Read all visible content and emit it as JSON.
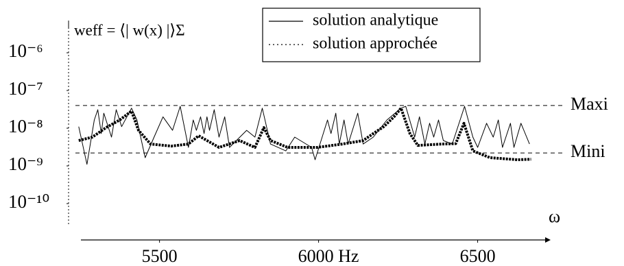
{
  "chart_data": {
    "type": "line",
    "ylabel": "weff = ⟨| w(x) |⟩Σ",
    "xlabel": "ω",
    "log_y": true,
    "xlim": [
      5240,
      6710
    ],
    "ylim": [
      1e-11,
      1e-05
    ],
    "xticks": [
      5500,
      {
        "value": 6000,
        "label": "6000 Hz"
      },
      6500
    ],
    "yticks": [
      {
        "value": 1e-06,
        "label": "10⁻⁶"
      },
      {
        "value": 1e-07,
        "label": "10⁻⁷"
      },
      {
        "value": 1e-08,
        "label": "10⁻⁸"
      },
      {
        "value": 1e-09,
        "label": "10⁻⁹"
      },
      {
        "value": 1e-10,
        "label": "10⁻¹⁰"
      }
    ],
    "reference_lines": [
      {
        "label": "Maxi",
        "value": 4e-08
      },
      {
        "label": "Mini",
        "value": 2.2e-09
      }
    ],
    "legend": "top",
    "series": [
      {
        "name": "solution analytique",
        "color": "#000000",
        "style": "solid",
        "x": [
          5246,
          5272,
          5295,
          5306,
          5317,
          5325,
          5349,
          5364,
          5381,
          5412,
          5429,
          5455,
          5483,
          5511,
          5541,
          5565,
          5591,
          5606,
          5616,
          5629,
          5640,
          5649,
          5657,
          5672,
          5687,
          5705,
          5720,
          5774,
          5800,
          5823,
          5849,
          5897,
          5925,
          5978,
          5989,
          6028,
          6039,
          6054,
          6065,
          6080,
          6093,
          6123,
          6140,
          6172,
          6215,
          6259,
          6274,
          6302,
          6317,
          6334,
          6349,
          6362,
          6377,
          6392,
          6420,
          6459,
          6485,
          6500,
          6528,
          6549,
          6565,
          6578,
          6603,
          6614,
          6636,
          6663
        ],
        "values": [
          1.1e-08,
          1.1e-09,
          1.65e-08,
          3.1e-08,
          7.2e-09,
          2.5e-08,
          5.8e-09,
          3.1e-08,
          1.1e-08,
          3.4e-08,
          1.65e-08,
          1.65e-09,
          5.8e-09,
          2e-08,
          8.8e-09,
          3.8e-08,
          3.1e-09,
          1.65e-08,
          8.8e-09,
          2e-08,
          7.2e-09,
          2e-08,
          8.8e-09,
          3.1e-08,
          5.8e-09,
          2e-08,
          3.1e-09,
          8.8e-09,
          5.8e-09,
          3.4e-08,
          3.8e-09,
          2.5e-09,
          5.8e-09,
          3.1e-09,
          1.46e-09,
          1.65e-08,
          7.2e-09,
          2.5e-08,
          3.8e-09,
          1.65e-08,
          3.8e-09,
          2.5e-08,
          3.8e-09,
          5.8e-09,
          1.65e-08,
          3.4e-08,
          3.8e-08,
          5.8e-09,
          2e-08,
          3.8e-09,
          1.35e-08,
          5.8e-09,
          1.65e-08,
          4.7e-09,
          3.8e-09,
          3.8e-08,
          5.8e-09,
          3.1e-09,
          1.35e-08,
          5.8e-09,
          1.65e-08,
          3.1e-09,
          1.35e-08,
          3.1e-09,
          1.35e-08,
          3.8e-09
        ]
      },
      {
        "name": "solution approchée",
        "color": "#000000",
        "style": "dotted",
        "x": [
          5246,
          5289,
          5332,
          5375,
          5412,
          5434,
          5472,
          5537,
          5591,
          5623,
          5687,
          5752,
          5800,
          5828,
          5849,
          5903,
          5996,
          6075,
          6140,
          6172,
          6205,
          6237,
          6259,
          6287,
          6312,
          6388,
          6431,
          6457,
          6485,
          6539,
          6625,
          6668
        ],
        "values": [
          4.7e-09,
          5.8e-09,
          1.04e-08,
          1.65e-08,
          2.85e-08,
          8.8e-09,
          3.8e-09,
          3.35e-09,
          3.8e-09,
          6.3e-09,
          3.1e-09,
          4.7e-09,
          3.1e-09,
          1.04e-08,
          4.7e-09,
          3.1e-09,
          3.1e-09,
          3.8e-09,
          4.7e-09,
          7.2e-09,
          1.1e-08,
          2e-08,
          3.4e-08,
          7.2e-09,
          3.5e-09,
          3.8e-09,
          3.9e-09,
          1.35e-08,
          2.5e-09,
          1.65e-09,
          1.46e-09,
          1.5e-09
        ]
      }
    ]
  }
}
